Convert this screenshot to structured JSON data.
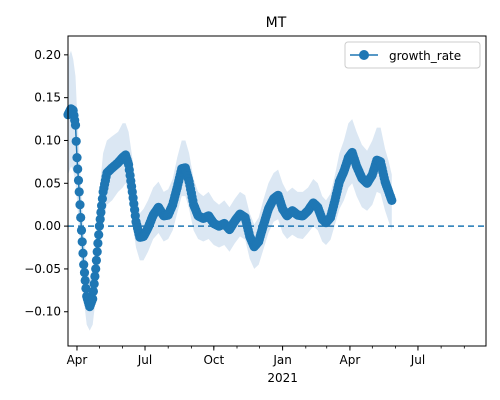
{
  "chart_data": {
    "type": "line",
    "title": "MT",
    "xlabel": "",
    "ylabel": "",
    "x_range": [
      "2020-03-20",
      "2021-09-30"
    ],
    "ylim": [
      -0.14,
      0.222
    ],
    "y_ticks": [
      -0.1,
      -0.05,
      0.0,
      0.05,
      0.1,
      0.15,
      0.2
    ],
    "y_tick_labels": [
      "−0.10",
      "−0.05",
      "0.00",
      "0.05",
      "0.10",
      "0.15",
      "0.20"
    ],
    "x_ticks": [
      {
        "date": "2020-04-01",
        "label": "Apr",
        "sublabel": ""
      },
      {
        "date": "2020-07-01",
        "label": "Jul",
        "sublabel": ""
      },
      {
        "date": "2020-10-01",
        "label": "Oct",
        "sublabel": ""
      },
      {
        "date": "2021-01-01",
        "label": "Jan",
        "sublabel": "2021"
      },
      {
        "date": "2021-04-01",
        "label": "Apr",
        "sublabel": ""
      },
      {
        "date": "2021-07-01",
        "label": "Jul",
        "sublabel": ""
      }
    ],
    "grid": false,
    "legend": {
      "position": "top-right",
      "entries": [
        "growth_rate"
      ]
    },
    "reference_line": {
      "y": 0.0,
      "style": "dashed"
    },
    "colors": {
      "series": "#1f77b4",
      "band": "#dbe7f3"
    },
    "series": [
      {
        "name": "growth_rate",
        "points": [
          {
            "x": "2020-03-20",
            "y": 0.13,
            "lo": 0.06,
            "hi": 0.195
          },
          {
            "x": "2020-03-24",
            "y": 0.137,
            "lo": 0.07,
            "hi": 0.205
          },
          {
            "x": "2020-03-27",
            "y": 0.135,
            "lo": 0.065,
            "hi": 0.195
          },
          {
            "x": "2020-03-30",
            "y": 0.118,
            "lo": 0.05,
            "hi": 0.175
          },
          {
            "x": "2020-04-01",
            "y": 0.08,
            "lo": 0.03,
            "hi": 0.135
          },
          {
            "x": "2020-04-04",
            "y": 0.04,
            "lo": -0.005,
            "hi": 0.09
          },
          {
            "x": "2020-04-07",
            "y": -0.005,
            "lo": -0.045,
            "hi": 0.035
          },
          {
            "x": "2020-04-10",
            "y": -0.045,
            "lo": -0.085,
            "hi": -0.005
          },
          {
            "x": "2020-04-14",
            "y": -0.082,
            "lo": -0.115,
            "hi": -0.045
          },
          {
            "x": "2020-04-18",
            "y": -0.094,
            "lo": -0.122,
            "hi": -0.063
          },
          {
            "x": "2020-04-22",
            "y": -0.085,
            "lo": -0.115,
            "hi": -0.05
          },
          {
            "x": "2020-04-26",
            "y": -0.05,
            "lo": -0.085,
            "hi": -0.015
          },
          {
            "x": "2020-05-01",
            "y": 0.0,
            "lo": -0.04,
            "hi": 0.04
          },
          {
            "x": "2020-05-06",
            "y": 0.04,
            "lo": 0.005,
            "hi": 0.085
          },
          {
            "x": "2020-05-11",
            "y": 0.062,
            "lo": 0.025,
            "hi": 0.1
          },
          {
            "x": "2020-05-18",
            "y": 0.068,
            "lo": 0.03,
            "hi": 0.105
          },
          {
            "x": "2020-05-26",
            "y": 0.074,
            "lo": 0.04,
            "hi": 0.11
          },
          {
            "x": "2020-06-01",
            "y": 0.08,
            "lo": 0.045,
            "hi": 0.12
          },
          {
            "x": "2020-06-05",
            "y": 0.083,
            "lo": 0.05,
            "hi": 0.12
          },
          {
            "x": "2020-06-09",
            "y": 0.072,
            "lo": 0.035,
            "hi": 0.11
          },
          {
            "x": "2020-06-14",
            "y": 0.04,
            "lo": 0.005,
            "hi": 0.08
          },
          {
            "x": "2020-06-19",
            "y": 0.005,
            "lo": -0.025,
            "hi": 0.04
          },
          {
            "x": "2020-06-24",
            "y": -0.013,
            "lo": -0.04,
            "hi": 0.015
          },
          {
            "x": "2020-06-29",
            "y": -0.012,
            "lo": -0.04,
            "hi": 0.02
          },
          {
            "x": "2020-07-05",
            "y": -0.002,
            "lo": -0.03,
            "hi": 0.03
          },
          {
            "x": "2020-07-12",
            "y": 0.013,
            "lo": -0.015,
            "hi": 0.045
          },
          {
            "x": "2020-07-19",
            "y": 0.022,
            "lo": -0.008,
            "hi": 0.052
          },
          {
            "x": "2020-07-26",
            "y": 0.012,
            "lo": -0.018,
            "hi": 0.04
          },
          {
            "x": "2020-08-01",
            "y": 0.013,
            "lo": -0.015,
            "hi": 0.043
          },
          {
            "x": "2020-08-07",
            "y": 0.025,
            "lo": -0.005,
            "hi": 0.055
          },
          {
            "x": "2020-08-13",
            "y": 0.045,
            "lo": 0.015,
            "hi": 0.08
          },
          {
            "x": "2020-08-19",
            "y": 0.067,
            "lo": 0.035,
            "hi": 0.1
          },
          {
            "x": "2020-08-24",
            "y": 0.068,
            "lo": 0.035,
            "hi": 0.1
          },
          {
            "x": "2020-08-29",
            "y": 0.052,
            "lo": 0.02,
            "hi": 0.085
          },
          {
            "x": "2020-09-04",
            "y": 0.025,
            "lo": -0.005,
            "hi": 0.055
          },
          {
            "x": "2020-09-10",
            "y": 0.012,
            "lo": -0.015,
            "hi": 0.04
          },
          {
            "x": "2020-09-17",
            "y": 0.009,
            "lo": -0.018,
            "hi": 0.035
          },
          {
            "x": "2020-09-24",
            "y": 0.012,
            "lo": -0.015,
            "hi": 0.04
          },
          {
            "x": "2020-10-01",
            "y": 0.003,
            "lo": -0.022,
            "hi": 0.03
          },
          {
            "x": "2020-10-08",
            "y": 0.0,
            "lo": -0.025,
            "hi": 0.025
          },
          {
            "x": "2020-10-15",
            "y": 0.003,
            "lo": -0.022,
            "hi": 0.03
          },
          {
            "x": "2020-10-22",
            "y": -0.004,
            "lo": -0.03,
            "hi": 0.022
          },
          {
            "x": "2020-10-29",
            "y": 0.006,
            "lo": -0.02,
            "hi": 0.032
          },
          {
            "x": "2020-11-05",
            "y": 0.014,
            "lo": -0.012,
            "hi": 0.04
          },
          {
            "x": "2020-11-12",
            "y": 0.01,
            "lo": -0.016,
            "hi": 0.036
          },
          {
            "x": "2020-11-18",
            "y": -0.012,
            "lo": -0.038,
            "hi": 0.015
          },
          {
            "x": "2020-11-24",
            "y": -0.024,
            "lo": -0.05,
            "hi": 0.002
          },
          {
            "x": "2020-11-30",
            "y": -0.018,
            "lo": -0.045,
            "hi": 0.01
          },
          {
            "x": "2020-12-06",
            "y": 0.0,
            "lo": -0.028,
            "hi": 0.03
          },
          {
            "x": "2020-12-13",
            "y": 0.02,
            "lo": -0.008,
            "hi": 0.05
          },
          {
            "x": "2020-12-20",
            "y": 0.032,
            "lo": 0.005,
            "hi": 0.062
          },
          {
            "x": "2020-12-26",
            "y": 0.036,
            "lo": 0.008,
            "hi": 0.066
          },
          {
            "x": "2021-01-01",
            "y": 0.02,
            "lo": -0.008,
            "hi": 0.05
          },
          {
            "x": "2021-01-07",
            "y": 0.012,
            "lo": -0.015,
            "hi": 0.04
          },
          {
            "x": "2021-01-14",
            "y": 0.018,
            "lo": -0.01,
            "hi": 0.045
          },
          {
            "x": "2021-01-21",
            "y": 0.013,
            "lo": -0.014,
            "hi": 0.04
          },
          {
            "x": "2021-01-28",
            "y": 0.012,
            "lo": -0.015,
            "hi": 0.04
          },
          {
            "x": "2021-02-04",
            "y": 0.018,
            "lo": -0.008,
            "hi": 0.045
          },
          {
            "x": "2021-02-11",
            "y": 0.027,
            "lo": 0.0,
            "hi": 0.055
          },
          {
            "x": "2021-02-17",
            "y": 0.022,
            "lo": -0.005,
            "hi": 0.05
          },
          {
            "x": "2021-02-23",
            "y": 0.008,
            "lo": -0.018,
            "hi": 0.035
          },
          {
            "x": "2021-02-28",
            "y": 0.004,
            "lo": -0.022,
            "hi": 0.03
          },
          {
            "x": "2021-03-06",
            "y": 0.01,
            "lo": -0.016,
            "hi": 0.038
          },
          {
            "x": "2021-03-12",
            "y": 0.03,
            "lo": 0.002,
            "hi": 0.06
          },
          {
            "x": "2021-03-18",
            "y": 0.052,
            "lo": 0.02,
            "hi": 0.085
          },
          {
            "x": "2021-03-24",
            "y": 0.064,
            "lo": 0.03,
            "hi": 0.1
          },
          {
            "x": "2021-03-30",
            "y": 0.08,
            "lo": 0.045,
            "hi": 0.12
          },
          {
            "x": "2021-04-04",
            "y": 0.086,
            "lo": 0.05,
            "hi": 0.125
          },
          {
            "x": "2021-04-10",
            "y": 0.07,
            "lo": 0.035,
            "hi": 0.11
          },
          {
            "x": "2021-04-17",
            "y": 0.056,
            "lo": 0.022,
            "hi": 0.095
          },
          {
            "x": "2021-04-24",
            "y": 0.05,
            "lo": 0.018,
            "hi": 0.088
          },
          {
            "x": "2021-05-01",
            "y": 0.06,
            "lo": 0.025,
            "hi": 0.1
          },
          {
            "x": "2021-05-07",
            "y": 0.077,
            "lo": 0.04,
            "hi": 0.115
          },
          {
            "x": "2021-05-12",
            "y": 0.075,
            "lo": 0.038,
            "hi": 0.115
          },
          {
            "x": "2021-05-18",
            "y": 0.052,
            "lo": 0.018,
            "hi": 0.09
          },
          {
            "x": "2021-05-23",
            "y": 0.04,
            "lo": 0.005,
            "hi": 0.075
          },
          {
            "x": "2021-05-27",
            "y": 0.03,
            "lo": -0.005,
            "hi": 0.06
          }
        ]
      }
    ]
  }
}
